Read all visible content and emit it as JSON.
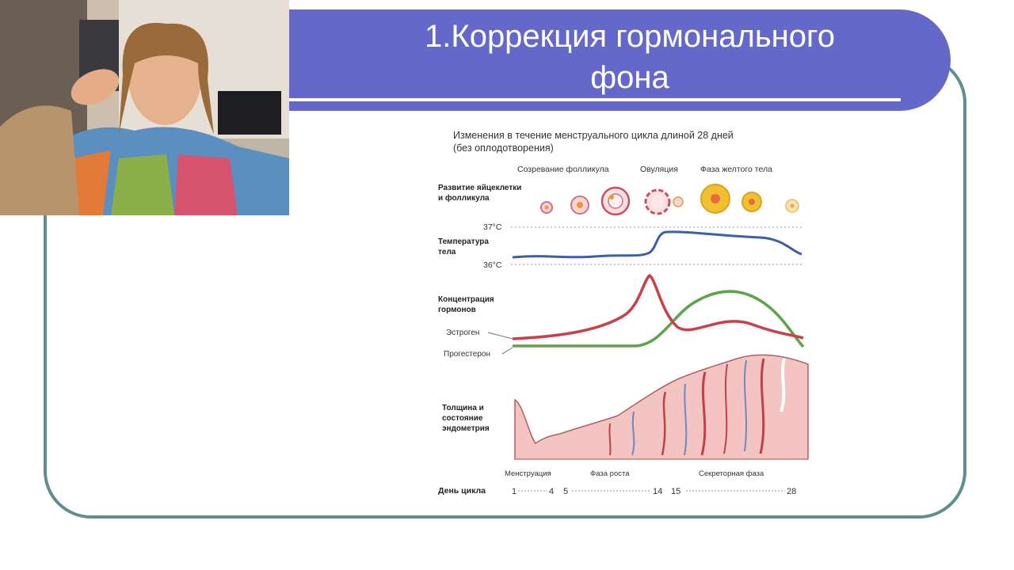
{
  "slide": {
    "title_line1": "1.Коррекция гормонального",
    "title_line2": "фона"
  },
  "diagram": {
    "heading_line1": "Изменения в течение менструального цикла длиной 28 дней",
    "heading_line2": "(без оплодотворения)",
    "phases_top": [
      "Созревание фолликула",
      "Овуляция",
      "Фаза желтого тела"
    ],
    "row1_label_line1": "Развитие яйцеклетки",
    "row1_label_line2": "и фолликула",
    "temp_label_line1": "Температура",
    "temp_label_line2": "тела",
    "temp_high": "37°C",
    "temp_low": "36°C",
    "hormone_label_line1": "Концентрация",
    "hormone_label_line2": "гормонов",
    "estrogen": "Эстроген",
    "progesterone": "Прогестерон",
    "endo_label_line1": "Толщина и",
    "endo_label_line2": "состояние",
    "endo_label_line3": "эндометрия",
    "phases_bottom": [
      "Менструация",
      "Фаза роста",
      "Секреторная фаза"
    ],
    "day_label": "День цикла",
    "days": [
      "1",
      "4",
      "5",
      "14",
      "15",
      "28"
    ],
    "colors": {
      "temperature": "#3b5fa8",
      "estrogen": "#c8404a",
      "progesterone": "#5ea34a",
      "follicle": "#f0c030",
      "endometrium": "#f3c4c2"
    }
  }
}
